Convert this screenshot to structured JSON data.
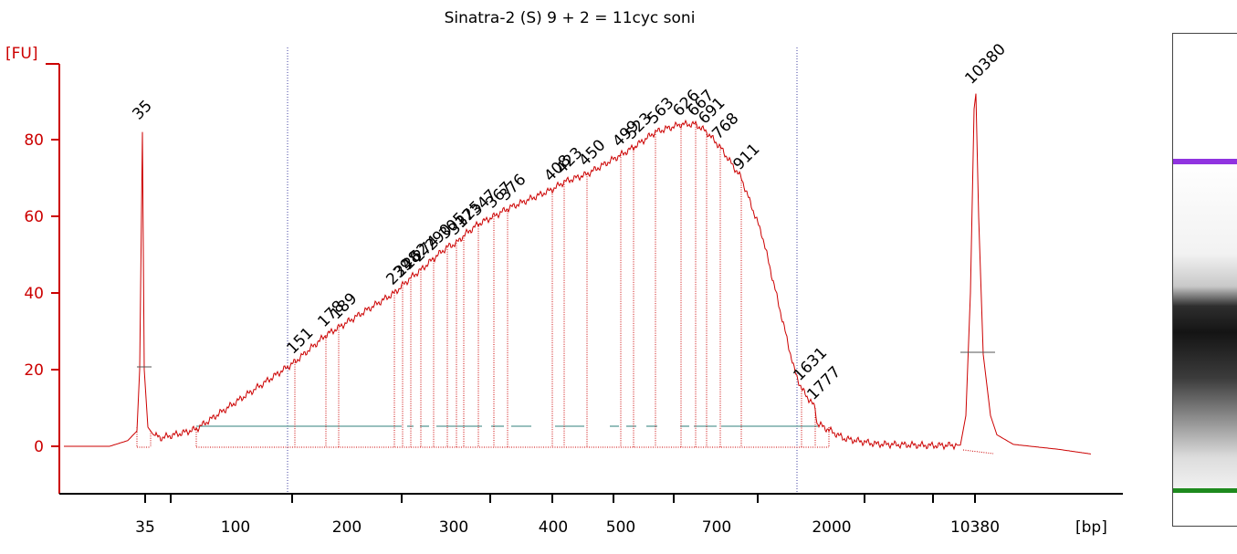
{
  "chart_data": {
    "type": "line",
    "title": "Sinatra-2 (S) 9 + 2 = 11cyc soni",
    "ylabel": "[FU]",
    "xlabel": "[bp]",
    "ylim": [
      -12,
      105
    ],
    "y_ticks": [
      "0",
      "20",
      "40",
      "60",
      "80"
    ],
    "x_ticks": [
      "35",
      "100",
      "200",
      "300",
      "400",
      "500",
      "700",
      "2000",
      "10380"
    ],
    "markers": [
      {
        "label": "35",
        "size_bp": 35,
        "fu": 82,
        "color": "#2e8b2e"
      },
      {
        "label": "10380",
        "size_bp": 10380,
        "fu": 92,
        "color": "#a040e0"
      }
    ],
    "peaks": [
      {
        "label": "151",
        "fu": 22
      },
      {
        "label": "178",
        "fu": 29
      },
      {
        "label": "189",
        "fu": 31
      },
      {
        "label": "239",
        "fu": 40
      },
      {
        "label": "248",
        "fu": 42
      },
      {
        "label": "262",
        "fu": 44
      },
      {
        "label": "274",
        "fu": 46
      },
      {
        "label": "290",
        "fu": 49
      },
      {
        "label": "305",
        "fu": 52
      },
      {
        "label": "317",
        "fu": 53
      },
      {
        "label": "325",
        "fu": 55
      },
      {
        "label": "347",
        "fu": 58
      },
      {
        "label": "367",
        "fu": 60
      },
      {
        "label": "376",
        "fu": 62
      },
      {
        "label": "408",
        "fu": 67
      },
      {
        "label": "423",
        "fu": 69
      },
      {
        "label": "450",
        "fu": 71
      },
      {
        "label": "499",
        "fu": 76
      },
      {
        "label": "523",
        "fu": 78
      },
      {
        "label": "563",
        "fu": 82
      },
      {
        "label": "626",
        "fu": 84
      },
      {
        "label": "667",
        "fu": 84
      },
      {
        "label": "691",
        "fu": 82
      },
      {
        "label": "768",
        "fu": 78
      },
      {
        "label": "911",
        "fu": 70
      },
      {
        "label": "1631",
        "fu": 15
      },
      {
        "label": "1777",
        "fu": 10
      }
    ],
    "grid": false,
    "legend": "none",
    "colors": {
      "trace": "#cc0000",
      "axis": "#cc0000",
      "baseline": "#5b9a96",
      "region": "#4040a0",
      "lower_marker": "#2e8b2e",
      "upper_marker": "#a040e0"
    }
  }
}
